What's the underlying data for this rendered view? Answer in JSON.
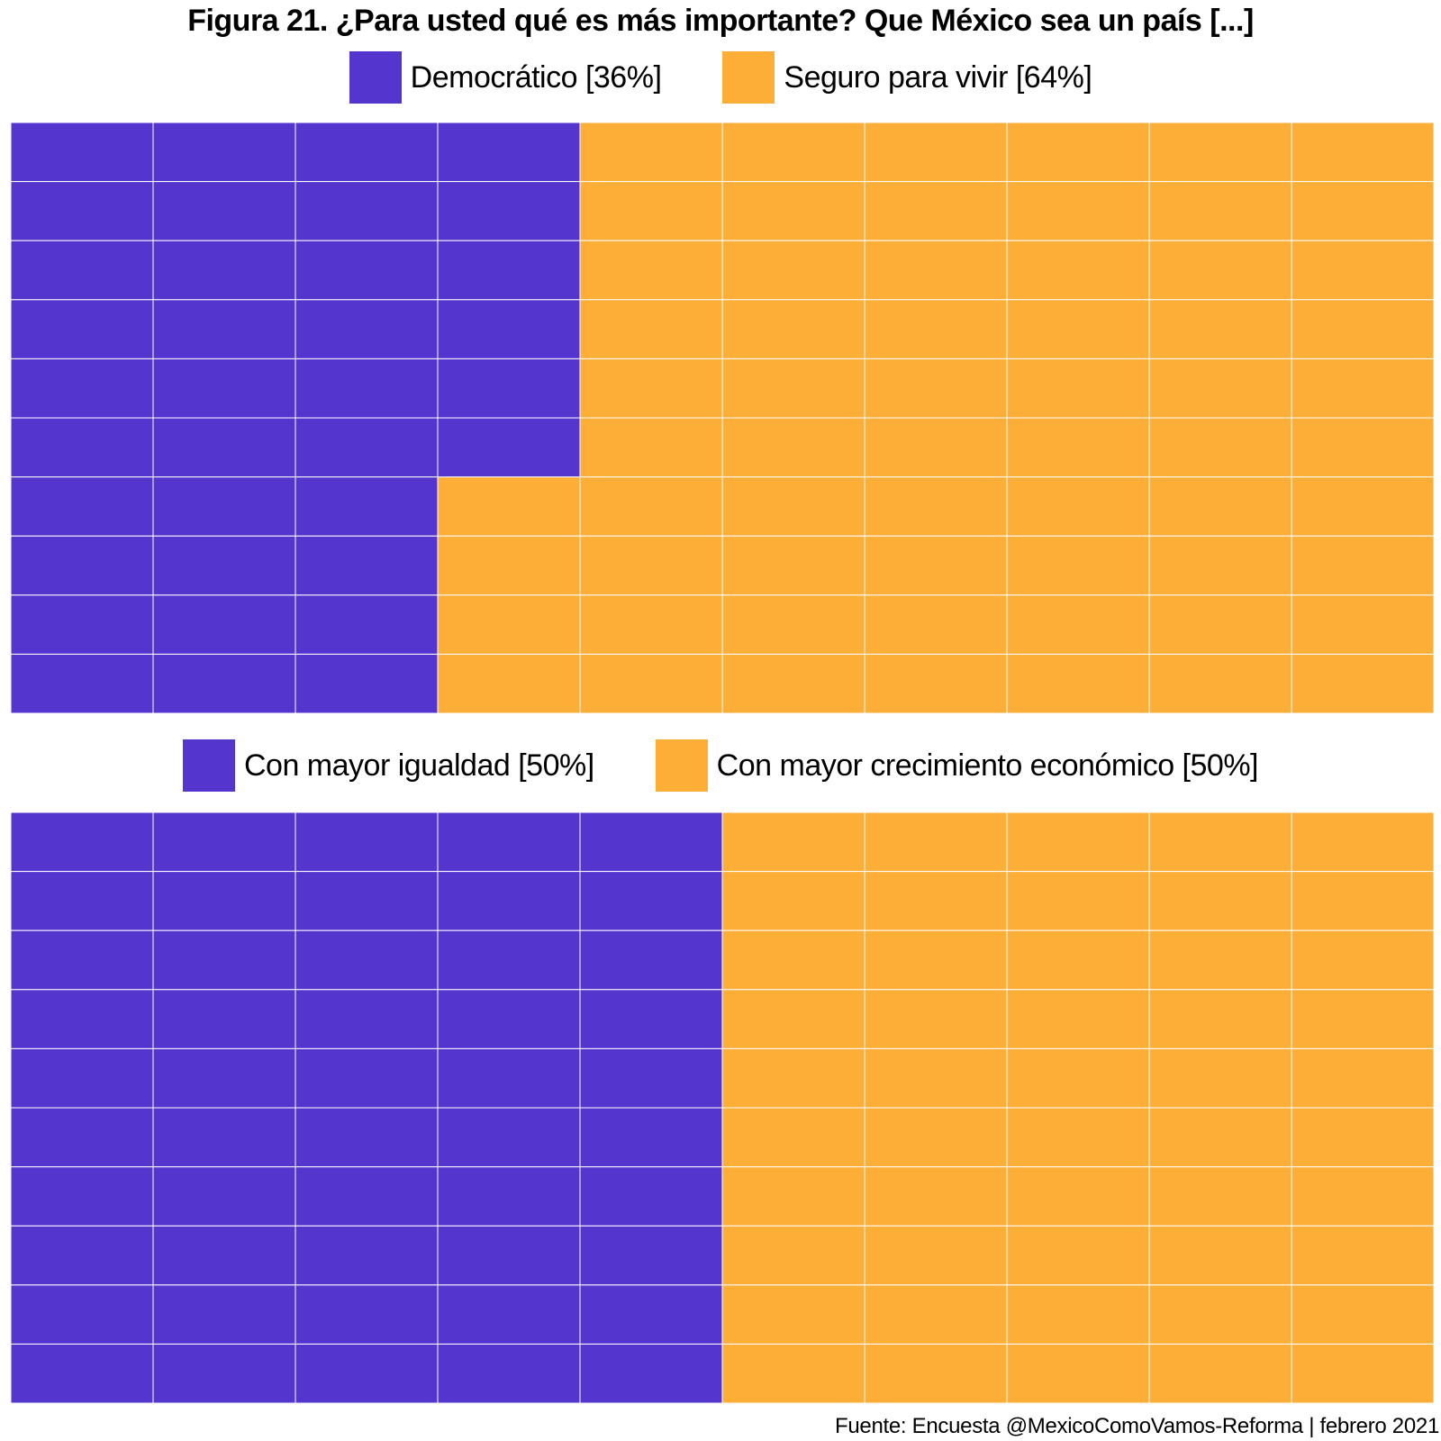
{
  "title": "Figura 21. ¿Para usted qué es más importante? Que México sea un país [...]",
  "caption": "Fuente: Encuesta @MexicoComoVamos-Reforma | febrero 2021",
  "colors": {
    "first": "#5436cf",
    "second": "#fdae37",
    "grid": "#ffffff"
  },
  "chart_data": [
    {
      "type": "waffle",
      "grid": {
        "columns": 10,
        "rows": 10,
        "cells_per_percent": 1
      },
      "fill_order": "column-wise, left to right, top to bottom",
      "legend_position": "top",
      "series": [
        {
          "name": "Democrático [36%]",
          "value": 36,
          "color": "#5436cf"
        },
        {
          "name": "Seguro para vivir [64%]",
          "value": 64,
          "color": "#fdae37"
        }
      ]
    },
    {
      "type": "waffle",
      "grid": {
        "columns": 10,
        "rows": 10,
        "cells_per_percent": 1
      },
      "fill_order": "column-wise, left to right, top to bottom",
      "legend_position": "top",
      "series": [
        {
          "name": "Con mayor igualdad [50%]",
          "value": 50,
          "color": "#5436cf"
        },
        {
          "name": "Con mayor crecimiento económico [50%]",
          "value": 50,
          "color": "#fdae37"
        }
      ]
    }
  ]
}
